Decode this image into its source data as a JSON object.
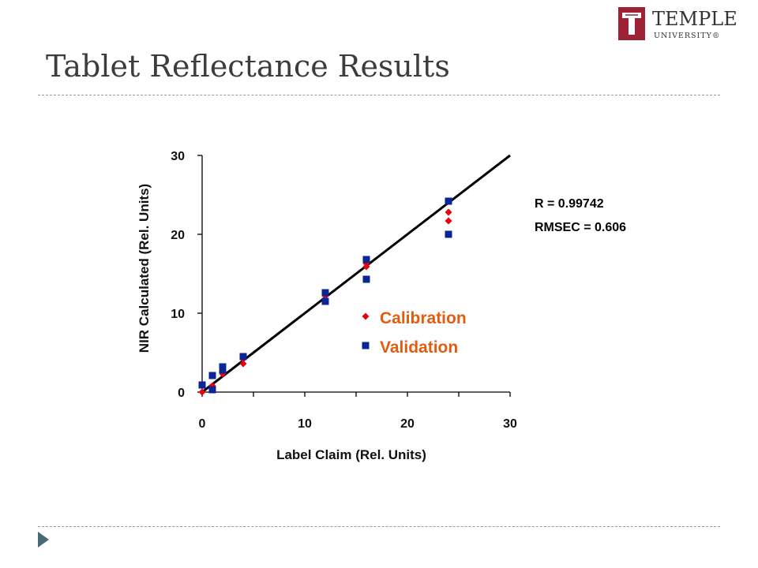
{
  "slide": {
    "title": "Tablet Reflectance Results",
    "stats": [
      "R = 0.99742",
      "RMSEC  = 0.606"
    ]
  },
  "logo": {
    "name": "TEMPLE",
    "subtitle": "UNIVERSITY®",
    "color": "#9d2235"
  },
  "colors": {
    "calibration": "#e8000d",
    "validation": "#0a2596",
    "legend_text": "#e25b0f",
    "footer_arrow": "#4a6a73"
  },
  "chart_data": {
    "type": "scatter",
    "xlabel": "Label Claim (Rel. Units)",
    "ylabel": "NIR Calculated (Rel. Units)",
    "xlim": [
      0,
      30
    ],
    "ylim": [
      0,
      30
    ],
    "xticks": [
      0,
      10,
      20,
      30
    ],
    "yticks": [
      0,
      10,
      20,
      30
    ],
    "grid": false,
    "legend_position": "center-right",
    "fit_line": {
      "x": [
        0,
        30
      ],
      "y": [
        0,
        30
      ]
    },
    "series": [
      {
        "name": "Calibration",
        "marker": "diamond",
        "points": [
          {
            "x": 0,
            "y": 0
          },
          {
            "x": 1,
            "y": 0.3
          },
          {
            "x": 1,
            "y": 0.8
          },
          {
            "x": 2,
            "y": 2.3
          },
          {
            "x": 2,
            "y": 2.9
          },
          {
            "x": 4,
            "y": 3.6
          },
          {
            "x": 4,
            "y": 4.2
          },
          {
            "x": 12,
            "y": 12.2
          },
          {
            "x": 16,
            "y": 15.9
          },
          {
            "x": 16,
            "y": 16.3
          },
          {
            "x": 24,
            "y": 21.7
          },
          {
            "x": 24,
            "y": 22.8
          }
        ]
      },
      {
        "name": "Validation",
        "marker": "square",
        "points": [
          {
            "x": 0,
            "y": 0.9
          },
          {
            "x": 1,
            "y": 0.3
          },
          {
            "x": 1,
            "y": 2.1
          },
          {
            "x": 2,
            "y": 2.8
          },
          {
            "x": 2,
            "y": 3.2
          },
          {
            "x": 4,
            "y": 4.5
          },
          {
            "x": 12,
            "y": 11.5
          },
          {
            "x": 12,
            "y": 12.6
          },
          {
            "x": 16,
            "y": 14.3
          },
          {
            "x": 16,
            "y": 16.8
          },
          {
            "x": 24,
            "y": 20.0
          },
          {
            "x": 24,
            "y": 24.2
          }
        ]
      }
    ]
  }
}
